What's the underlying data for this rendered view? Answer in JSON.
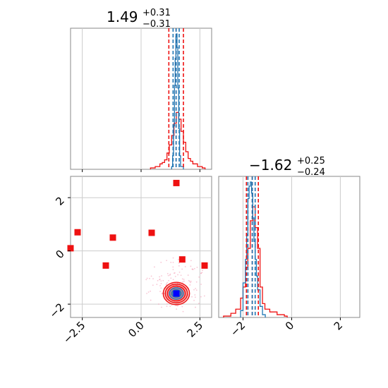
{
  "chart_data": {
    "type": "corner",
    "panels": [
      {
        "id": "hist-param-1",
        "kind": "histogram",
        "title": {
          "median": "1.49",
          "plus": "+0.31",
          "minus": "−0.31"
        },
        "xlim": [
          -3.0,
          3.0
        ],
        "grid": true,
        "quantiles_red": [
          1.18,
          1.49,
          1.8
        ],
        "quantiles_blue": [
          1.36,
          1.49,
          1.62
        ],
        "series": [
          {
            "name": "",
            "color": "#ee1111",
            "x": [
              0.4,
              0.6,
              0.8,
              0.9,
              1.0,
              1.1,
              1.2,
              1.3,
              1.4,
              1.5,
              1.6,
              1.7,
              1.8,
              1.9,
              2.0,
              2.1,
              2.2,
              2.4,
              2.6
            ],
            "values": [
              0.01,
              0.02,
              0.04,
              0.05,
              0.07,
              0.12,
              0.18,
              0.25,
              0.34,
              0.42,
              0.37,
              0.28,
              0.2,
              0.13,
              0.08,
              0.06,
              0.04,
              0.02,
              0.01
            ]
          },
          {
            "name": "",
            "color": "#1f77b4",
            "x": [
              1.3,
              1.34,
              1.38,
              1.42,
              1.45,
              1.48,
              1.5,
              1.53,
              1.56,
              1.6,
              1.64,
              1.68
            ],
            "values": [
              0.02,
              0.1,
              0.32,
              0.62,
              0.82,
              0.98,
              1.0,
              0.9,
              0.6,
              0.3,
              0.1,
              0.02
            ]
          }
        ]
      },
      {
        "id": "hist-param-2",
        "kind": "histogram",
        "title": {
          "median": "−1.62",
          "plus": "+0.25",
          "minus": "−0.24"
        },
        "xlim": [
          -3.0,
          2.8
        ],
        "xticks": [
          -2,
          0,
          2
        ],
        "xtick_labels": [
          "−2",
          "0",
          "2"
        ],
        "grid": true,
        "quantiles_red": [
          -1.86,
          -1.62,
          -1.37
        ],
        "quantiles_blue": [
          -1.8,
          -1.62,
          -1.5
        ],
        "series": [
          {
            "name": "",
            "color": "#ee1111",
            "x": [
              -2.8,
              -2.5,
              -2.3,
              -2.1,
              -2.0,
              -1.9,
              -1.8,
              -1.7,
              -1.6,
              -1.5,
              -1.4,
              -1.3,
              -1.2,
              -1.1,
              -0.9,
              -0.6,
              -0.3
            ],
            "values": [
              0.01,
              0.03,
              0.06,
              0.14,
              0.22,
              0.36,
              0.5,
              0.7,
              0.8,
              0.65,
              0.5,
              0.22,
              0.1,
              0.06,
              0.04,
              0.02,
              0.01
            ]
          },
          {
            "name": "",
            "color": "#1f77b4",
            "x": [
              -2.1,
              -2.0,
              -1.9,
              -1.85,
              -1.8,
              -1.75,
              -1.7,
              -1.65,
              -1.6,
              -1.55,
              -1.5,
              -1.45,
              -1.4,
              -1.3,
              -1.2
            ],
            "values": [
              0.05,
              0.25,
              0.42,
              0.6,
              0.86,
              0.95,
              0.98,
              0.9,
              0.72,
              0.55,
              0.42,
              0.3,
              0.2,
              0.08,
              0.02
            ]
          }
        ]
      },
      {
        "id": "scatter-2d",
        "kind": "scatter",
        "xlim": [
          -3.0,
          3.0
        ],
        "ylim": [
          -2.5,
          2.8
        ],
        "xticks": [
          -2.5,
          0.0,
          2.5
        ],
        "xtick_labels": [
          "−2.5",
          "0.0",
          "2.5"
        ],
        "yticks": [
          -2,
          0,
          2
        ],
        "ytick_labels": [
          "−2",
          "0",
          "2"
        ],
        "grid": true,
        "red_points": [
          [
            -2.7,
            0.7
          ],
          [
            -1.2,
            0.5
          ],
          [
            -1.5,
            -0.55
          ],
          [
            0.45,
            0.68
          ],
          [
            1.5,
            2.55
          ],
          [
            1.75,
            -0.32
          ],
          [
            2.7,
            -0.55
          ],
          [
            -3.0,
            0.1
          ]
        ],
        "blue_points": [
          [
            1.5,
            -1.6
          ]
        ],
        "contour_center": [
          1.5,
          -1.6
        ],
        "contour_red_radii": [
          [
            0.56,
            0.42
          ],
          [
            0.47,
            0.35
          ],
          [
            0.38,
            0.28
          ]
        ],
        "contour_blue_radii": [
          [
            0.3,
            0.22
          ],
          [
            0.2,
            0.14
          ]
        ],
        "colors": {
          "red": "#ee1111",
          "blue": "#1f77b4",
          "blue_point": "#0000ff"
        }
      }
    ]
  }
}
